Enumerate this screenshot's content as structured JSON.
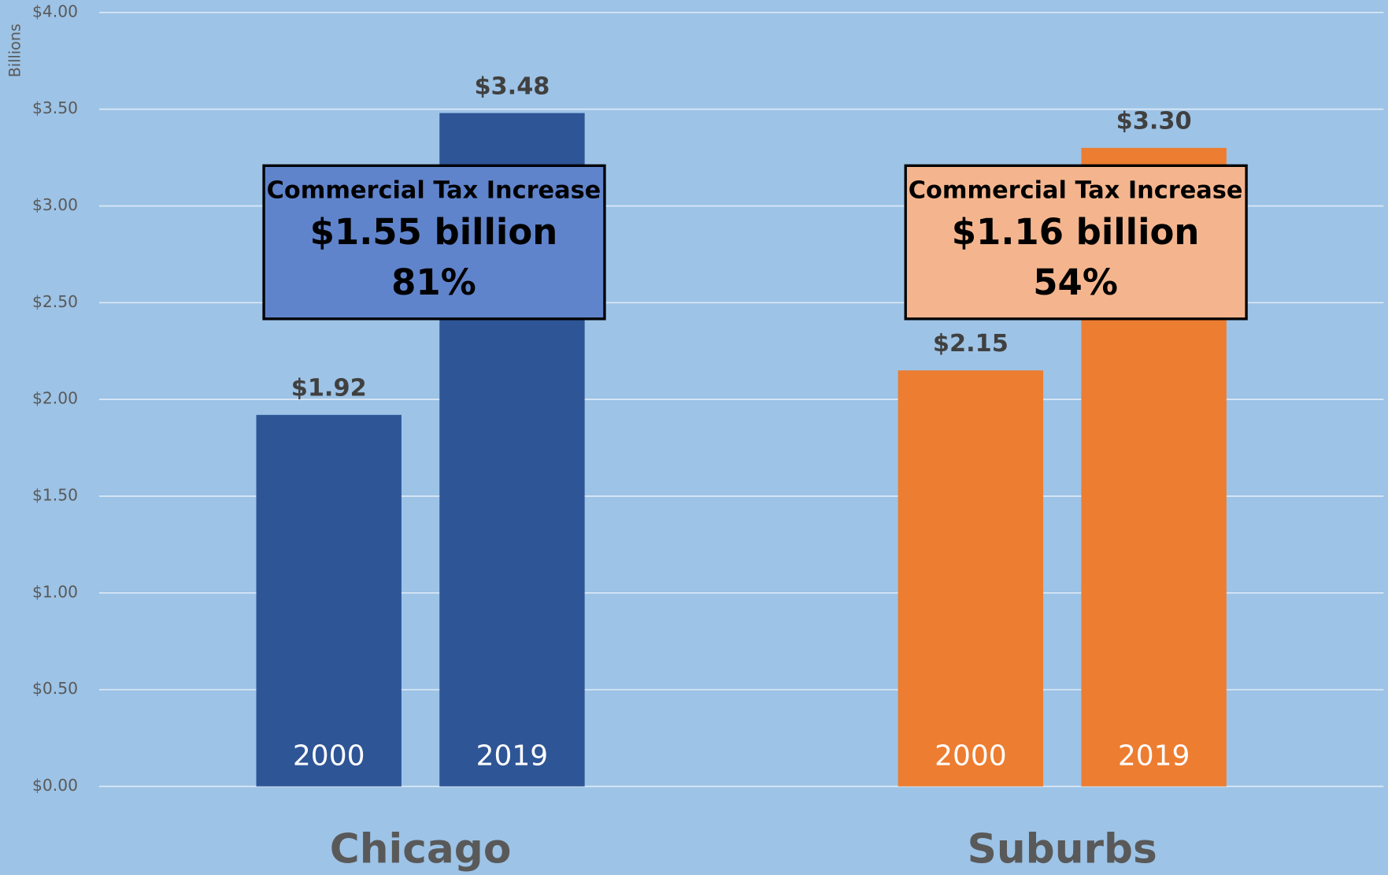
{
  "chart_data": {
    "type": "bar",
    "y_label": "Billions",
    "categories": [
      "Chicago",
      "Suburbs"
    ],
    "colors": [
      "#2e5596",
      "#ed7d31"
    ],
    "series": [
      {
        "name": "2000",
        "values": [
          1.92,
          2.15
        ],
        "value_labels": [
          "$1.92",
          "$2.15"
        ]
      },
      {
        "name": "2019",
        "values": [
          3.48,
          3.3
        ],
        "value_labels": [
          "$3.48",
          "$3.30"
        ]
      }
    ],
    "ylim": [
      0,
      4
    ],
    "yticks": [
      {
        "value": 0,
        "label": "$0.00"
      },
      {
        "value": 0.5,
        "label": "$0.50"
      },
      {
        "value": 1,
        "label": "$1.00"
      },
      {
        "value": 1.5,
        "label": "$1.50"
      },
      {
        "value": 2,
        "label": "$2.00"
      },
      {
        "value": 2.5,
        "label": "$2.50"
      },
      {
        "value": 3,
        "label": "$3.00"
      },
      {
        "value": 3.5,
        "label": "$3.50"
      },
      {
        "value": 4,
        "label": "$4.00"
      }
    ],
    "grid": true,
    "annotations": [
      {
        "lines": [
          "Commercial Tax Increase",
          "$1.55 billion",
          "81%"
        ],
        "color": "#6084cc"
      },
      {
        "lines": [
          "Commercial Tax Increase",
          "$1.16 billion",
          "54%"
        ],
        "color": "#f4b58e"
      }
    ]
  }
}
